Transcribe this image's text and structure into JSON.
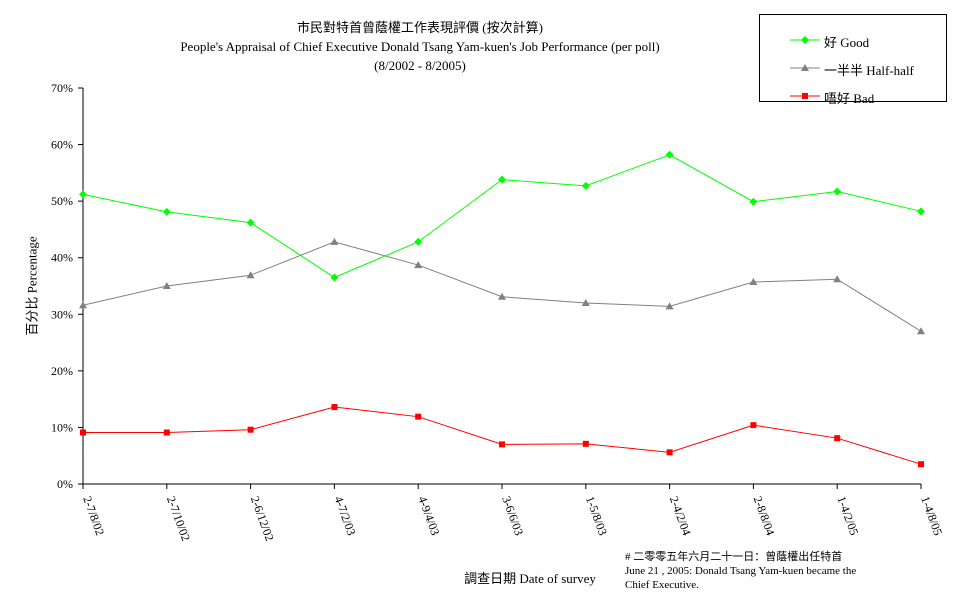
{
  "chart_data": {
    "type": "line",
    "title_zh": "市民對特首曾蔭權工作表現評價 (按次計算)",
    "title": "People's Appraisal of Chief Executive Donald Tsang Yam-kuen's Job Performance (per poll)",
    "subtitle": "(8/2002 - 8/2005)",
    "ylabel": "百分比 Percentage",
    "xlabel": "調查日期 Date of survey",
    "ylim": [
      0,
      70
    ],
    "yticks": [
      "0%",
      "10%",
      "20%",
      "30%",
      "40%",
      "50%",
      "60%",
      "70%"
    ],
    "grid": false,
    "legend_position": "top-right",
    "categories": [
      "2-7/8/02",
      "2-7/10/02",
      "2-6/12/02",
      "4-7/2/03",
      "4-9/4/03",
      "3-6/6/03",
      "1-5/8/03",
      "2-4/2/04",
      "2-8/8/04",
      "1-4/2/05",
      "1-4/8/05"
    ],
    "series": [
      {
        "name": "好 Good",
        "color": "#00ff00",
        "marker": "diamond",
        "values": [
          51.2,
          48.1,
          46.2,
          36.5,
          42.8,
          53.8,
          52.7,
          58.2,
          49.9,
          51.7,
          48.2
        ]
      },
      {
        "name": "一半半 Half-half",
        "color": "#808080",
        "marker": "triangle",
        "values": [
          31.6,
          35.0,
          36.9,
          42.8,
          38.7,
          33.1,
          32.0,
          31.4,
          35.7,
          36.2,
          27.0
        ]
      },
      {
        "name": "唔好 Bad",
        "color": "#ff0000",
        "marker": "square",
        "values": [
          9.1,
          9.1,
          9.6,
          13.6,
          11.9,
          7.0,
          7.1,
          5.6,
          10.4,
          8.1,
          3.5
        ]
      }
    ],
    "footnote": [
      "#  二零零五年六月二十一日：曾蔭權出任特首",
      "June 21 , 2005: Donald Tsang Yam-kuen became the",
      "Chief Executive."
    ]
  }
}
